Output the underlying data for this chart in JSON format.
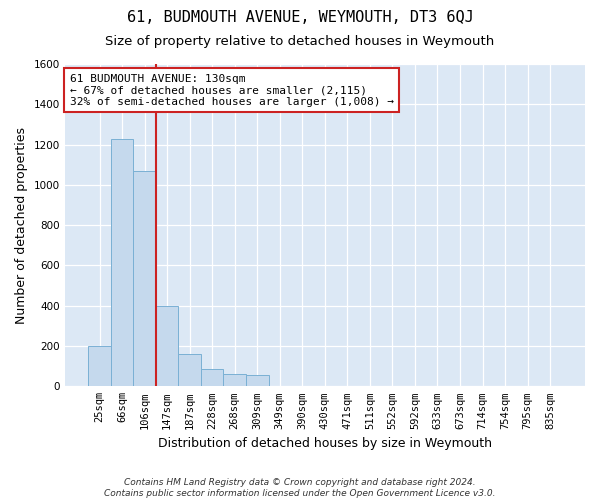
{
  "title": "61, BUDMOUTH AVENUE, WEYMOUTH, DT3 6QJ",
  "subtitle": "Size of property relative to detached houses in Weymouth",
  "xlabel": "Distribution of detached houses by size in Weymouth",
  "ylabel": "Number of detached properties",
  "categories": [
    "25sqm",
    "66sqm",
    "106sqm",
    "147sqm",
    "187sqm",
    "228sqm",
    "268sqm",
    "309sqm",
    "349sqm",
    "390sqm",
    "430sqm",
    "471sqm",
    "511sqm",
    "552sqm",
    "592sqm",
    "633sqm",
    "673sqm",
    "714sqm",
    "754sqm",
    "795sqm",
    "835sqm"
  ],
  "values": [
    200,
    1230,
    1070,
    400,
    160,
    85,
    60,
    55,
    0,
    0,
    0,
    0,
    0,
    0,
    0,
    0,
    0,
    0,
    0,
    0,
    0
  ],
  "bar_color": "#c5d9ed",
  "bar_edge_color": "#7ab0d4",
  "vline_x": 2.5,
  "vline_color": "#cc2222",
  "annotation_text": "61 BUDMOUTH AVENUE: 130sqm\n← 67% of detached houses are smaller (2,115)\n32% of semi-detached houses are larger (1,008) →",
  "annotation_box_color": "#ffffff",
  "annotation_box_edge": "#cc2222",
  "ylim": [
    0,
    1600
  ],
  "yticks": [
    0,
    200,
    400,
    600,
    800,
    1000,
    1200,
    1400,
    1600
  ],
  "bg_color": "#dce8f5",
  "footer": "Contains HM Land Registry data © Crown copyright and database right 2024.\nContains public sector information licensed under the Open Government Licence v3.0.",
  "title_fontsize": 11,
  "subtitle_fontsize": 9.5,
  "axis_label_fontsize": 9,
  "tick_fontsize": 7.5,
  "annotation_fontsize": 8,
  "footer_fontsize": 6.5
}
